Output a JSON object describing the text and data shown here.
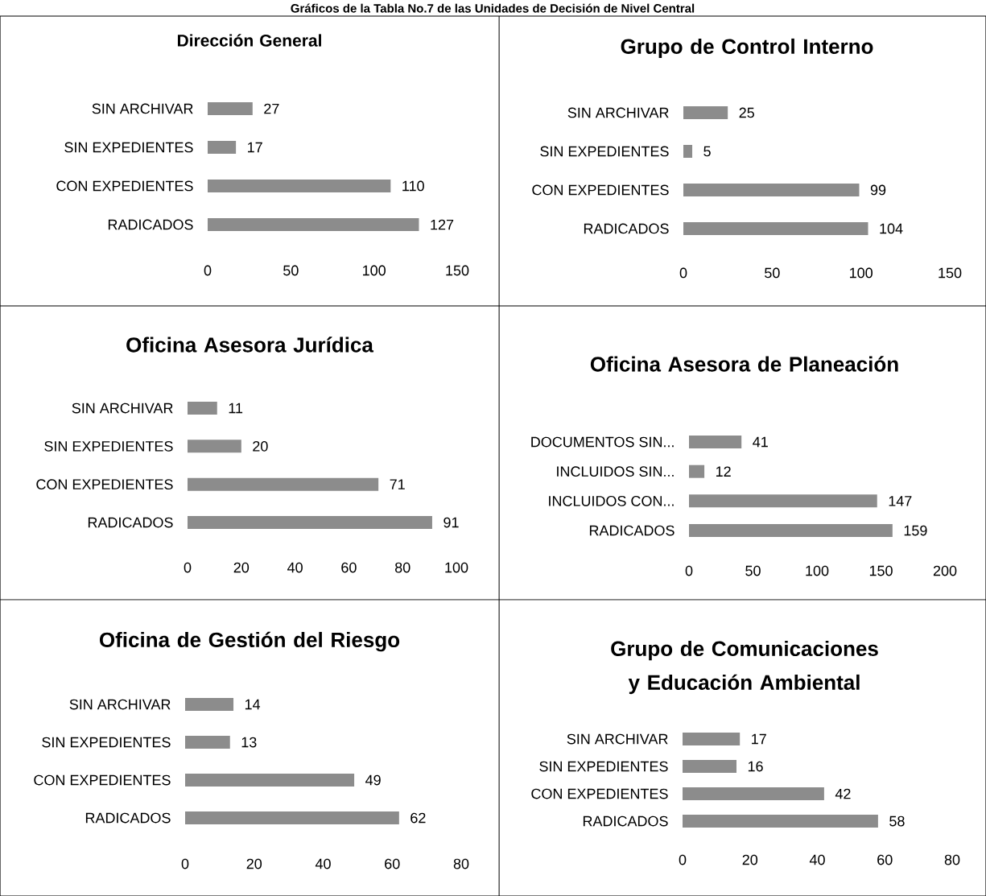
{
  "chart_data": [
    {
      "type": "bar",
      "orientation": "horizontal",
      "title": "Dirección General",
      "annotations": [
        "Gráficos de la Tabla No.7 de las Unidades de Decisión de Nivel Central"
      ],
      "categories": [
        "SIN ARCHIVAR",
        "SIN EXPEDIENTES",
        "CON EXPEDIENTES",
        "RADICADOS"
      ],
      "values": [
        27,
        17,
        110,
        127
      ],
      "color": "#8c8c8c",
      "xlim": [
        0,
        150
      ],
      "xticks": [
        0,
        50,
        100,
        150
      ],
      "data_labels": true
    },
    {
      "type": "bar",
      "orientation": "horizontal",
      "title": "Grupo de Control Interno",
      "categories": [
        "SIN ARCHIVAR",
        "SIN EXPEDIENTES",
        "CON EXPEDIENTES",
        "RADICADOS"
      ],
      "values": [
        25,
        5,
        99,
        104
      ],
      "color": "#8c8c8c",
      "xlim": [
        0,
        150
      ],
      "xticks": [
        0,
        50,
        100,
        150
      ],
      "data_labels": true
    },
    {
      "type": "bar",
      "orientation": "horizontal",
      "title": "Oficina Asesora Jurídica",
      "categories": [
        "SIN ARCHIVAR",
        "SIN EXPEDIENTES",
        "CON EXPEDIENTES",
        "RADICADOS"
      ],
      "values": [
        11,
        20,
        71,
        91
      ],
      "color": "#8c8c8c",
      "xlim": [
        0,
        100
      ],
      "xticks": [
        0,
        20,
        40,
        60,
        80,
        100
      ],
      "data_labels": true
    },
    {
      "type": "bar",
      "orientation": "horizontal",
      "title": "Oficina Asesora de Planeación",
      "categories": [
        "DOCUMENTOS SIN...",
        "INCLUIDOS SIN...",
        "INCLUIDOS CON...",
        "RADICADOS"
      ],
      "values": [
        41,
        12,
        147,
        159
      ],
      "color": "#8c8c8c",
      "xlim": [
        0,
        200
      ],
      "xticks": [
        0,
        50,
        100,
        150,
        200
      ],
      "data_labels": true
    },
    {
      "type": "bar",
      "orientation": "horizontal",
      "title": "Oficina de Gestión del Riesgo",
      "categories": [
        "SIN ARCHIVAR",
        "SIN EXPEDIENTES",
        "CON EXPEDIENTES",
        "RADICADOS"
      ],
      "values": [
        14,
        13,
        49,
        62
      ],
      "color": "#8c8c8c",
      "xlim": [
        0,
        80
      ],
      "xticks": [
        0,
        20,
        40,
        60,
        80
      ],
      "data_labels": true
    },
    {
      "type": "bar",
      "orientation": "horizontal",
      "title": "Grupo de Comunicaciones y Educación Ambiental",
      "categories": [
        "SIN ARCHIVAR",
        "SIN EXPEDIENTES",
        "CON EXPEDIENTES",
        "RADICADOS"
      ],
      "values": [
        17,
        16,
        42,
        58
      ],
      "color": "#8c8c8c",
      "xlim": [
        0,
        80
      ],
      "xticks": [
        0,
        20,
        40,
        60,
        80
      ],
      "data_labels": true
    }
  ]
}
